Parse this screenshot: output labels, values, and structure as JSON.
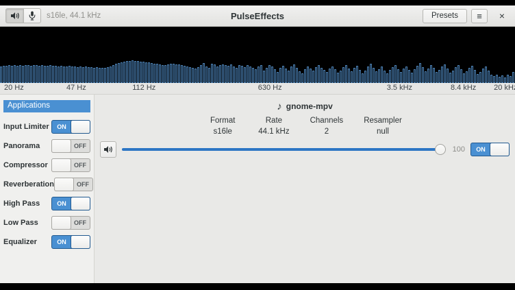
{
  "header": {
    "title": "PulseEffects",
    "device_info": "s16le, 44.1 kHz",
    "presets_label": "Presets",
    "menu_glyph": "≡",
    "close_glyph": "×"
  },
  "accent_color": "#4a90d2",
  "spectrum": {
    "bar_area_height": 82,
    "bars": [
      24,
      25,
      25,
      26,
      25,
      26,
      25,
      26,
      25,
      26,
      26,
      25,
      26,
      26,
      25,
      26,
      25,
      25,
      26,
      25,
      25,
      24,
      25,
      24,
      24,
      25,
      24,
      24,
      23,
      24,
      23,
      24,
      23,
      23,
      22,
      23,
      22,
      22,
      22,
      23,
      24,
      26,
      28,
      29,
      30,
      31,
      32,
      32,
      33,
      32,
      32,
      31,
      31,
      30,
      30,
      29,
      28,
      28,
      27,
      26,
      26,
      27,
      28,
      28,
      27,
      27,
      26,
      25,
      24,
      23,
      22,
      21,
      23,
      26,
      29,
      24,
      22,
      28,
      27,
      24,
      26,
      27,
      26,
      25,
      27,
      24,
      22,
      26,
      25,
      23,
      26,
      24,
      22,
      20,
      24,
      26,
      18,
      22,
      26,
      24,
      20,
      16,
      22,
      25,
      21,
      18,
      24,
      27,
      22,
      17,
      14,
      20,
      24,
      21,
      18,
      23,
      26,
      22,
      19,
      16,
      21,
      24,
      20,
      15,
      18,
      23,
      26,
      21,
      17,
      22,
      25,
      19,
      14,
      18,
      24,
      28,
      22,
      17,
      20,
      24,
      18,
      14,
      19,
      23,
      26,
      20,
      16,
      21,
      24,
      19,
      15,
      20,
      25,
      29,
      23,
      17,
      21,
      26,
      22,
      16,
      19,
      24,
      27,
      21,
      15,
      18,
      23,
      26,
      20,
      14,
      17,
      22,
      25,
      19,
      13,
      16,
      21,
      24,
      18,
      12,
      10,
      12,
      9,
      11,
      8,
      12,
      10,
      16
    ],
    "ticks": [
      {
        "label": "20 Hz",
        "left_pct": 0.8
      },
      {
        "label": "47 Hz",
        "left_pct": 12.9
      },
      {
        "label": "112 Hz",
        "left_pct": 25.7
      },
      {
        "label": "630 Hz",
        "left_pct": 50.1
      },
      {
        "label": "3.5 kHz",
        "left_pct": 75.1
      },
      {
        "label": "8.4 kHz",
        "left_pct": 87.5
      },
      {
        "label": "20 kHz",
        "left_pct": 95.9
      }
    ]
  },
  "sidebar": {
    "header": "Applications",
    "items": [
      {
        "label": "Input Limiter",
        "state": "ON"
      },
      {
        "label": "Panorama",
        "state": "OFF"
      },
      {
        "label": "Compressor",
        "state": "OFF"
      },
      {
        "label": "Reverberation",
        "state": "OFF"
      },
      {
        "label": "High Pass",
        "state": "ON"
      },
      {
        "label": "Low Pass",
        "state": "OFF"
      },
      {
        "label": "Equalizer",
        "state": "ON"
      }
    ]
  },
  "app": {
    "name": "gnome-mpv",
    "note_glyph": "♪",
    "params": [
      {
        "label": "Format",
        "value": "s16le"
      },
      {
        "label": "Rate",
        "value": "44.1 kHz"
      },
      {
        "label": "Channels",
        "value": "2"
      },
      {
        "label": "Resampler",
        "value": "null"
      }
    ],
    "volume": {
      "value": "100",
      "switch_state": "ON"
    }
  }
}
